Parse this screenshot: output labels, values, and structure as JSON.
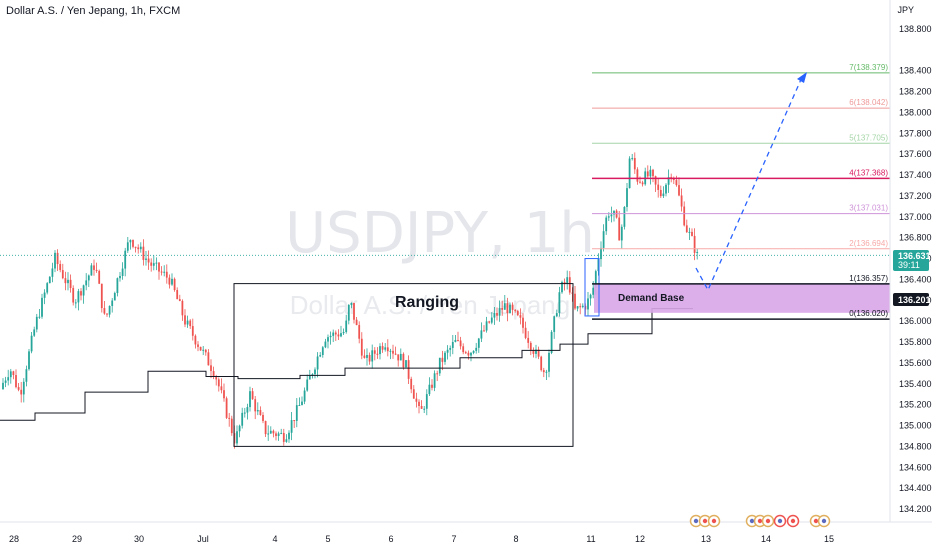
{
  "header": {
    "title": "Dollar A.S. / Yen Jepang, 1h, FXCM",
    "currency": "JPY"
  },
  "watermark": {
    "ticker": "USDJPY, 1h",
    "name": "Dollar A.S. / Yen Jepang"
  },
  "annotations": {
    "ranging_label": "Ranging",
    "demand_label": "Demand Base"
  },
  "price_tags": {
    "last_price": "136.631",
    "countdown": "39:11",
    "marker_price": "136.201",
    "last_color": "#26a69a",
    "marker_color": "#131722"
  },
  "chart_data": {
    "type": "candlestick",
    "symbol": "USDJPY",
    "timeframe": "1h",
    "y_range": [
      134.1,
      139.0
    ],
    "y_ticks": [
      "138.800",
      "138.400",
      "138.200",
      "138.000",
      "137.800",
      "137.600",
      "137.400",
      "137.200",
      "137.000",
      "136.800",
      "136.600",
      "136.400",
      "136.200",
      "136.000",
      "135.800",
      "135.600",
      "135.400",
      "135.200",
      "135.000",
      "134.800",
      "134.600",
      "134.400",
      "134.200"
    ],
    "x_ticks": [
      "28",
      "29",
      "30",
      "Jul",
      "4",
      "5",
      "6",
      "7",
      "8",
      "11",
      "12",
      "13",
      "14",
      "15"
    ],
    "fib_levels": [
      {
        "label": "0(136.020)",
        "ratio": 0,
        "price": 136.02,
        "color": "#131722"
      },
      {
        "label": "1(136.357)",
        "ratio": 1,
        "price": 136.357,
        "color": "#131722"
      },
      {
        "label": "2(136.694)",
        "ratio": 2,
        "price": 136.694,
        "color": "#f7a9a8"
      },
      {
        "label": "3(137.031)",
        "ratio": 3,
        "price": 137.031,
        "color": "#ce93d8"
      },
      {
        "label": "4(137.368)",
        "ratio": 4,
        "price": 137.368,
        "color": "#d81b60"
      },
      {
        "label": "5(137.705)",
        "ratio": 5,
        "price": 137.705,
        "color": "#a5d6a7"
      },
      {
        "label": "6(138.042)",
        "ratio": 6,
        "price": 138.042,
        "color": "#ef9a9a"
      },
      {
        "label": "7(138.379)",
        "ratio": 7,
        "price": 138.379,
        "color": "#66bb6a"
      }
    ],
    "zones": {
      "ranging_top": 136.36,
      "ranging_bottom": 134.8,
      "demand_top": 136.357,
      "demand_bottom": 136.08
    },
    "candle_colors": {
      "up": "#26a69a",
      "down": "#ef5350"
    }
  }
}
